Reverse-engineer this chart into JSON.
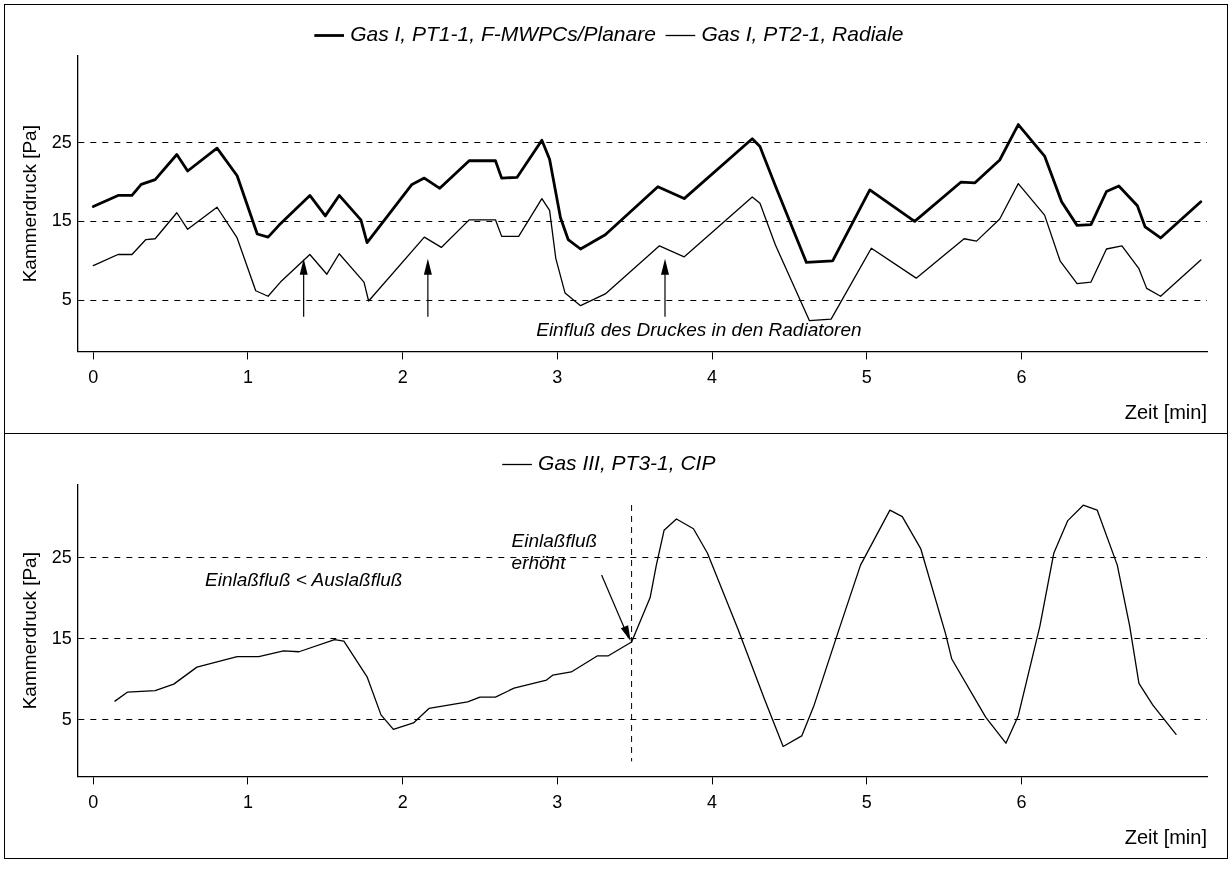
{
  "chart_data": [
    {
      "type": "line",
      "xlabel": "Zeit [min]",
      "ylabel": "Kammerdruck [Pa]",
      "xlim": [
        -0.1,
        7.2
      ],
      "ylim": [
        -1.5,
        36
      ],
      "xticks": [
        0,
        1,
        2,
        3,
        4,
        5,
        6
      ],
      "yticks": [
        5,
        15,
        25
      ],
      "grid": "y",
      "legend": "top",
      "annotations": [
        "Einfluß des Druckes in den Radiatoren"
      ],
      "series": [
        {
          "name": "Gas I, PT1-1, F-MWPCs/Planare",
          "color": "#000000",
          "x": [
            0,
            0.16,
            0.25,
            0.31,
            0.4,
            0.54,
            0.61,
            0.8,
            0.93,
            1.06,
            1.13,
            1.2,
            1.4,
            1.5,
            1.59,
            1.73,
            1.77,
            2.06,
            2.14,
            2.24,
            2.43,
            2.6,
            2.64,
            2.74,
            2.9,
            2.95,
            3.02,
            3.07,
            3.15,
            3.31,
            3.65,
            3.82,
            4.26,
            4.31,
            4.41,
            4.61,
            4.78,
            5.02,
            5.31,
            5.61,
            5.7,
            5.86,
            5.98,
            6.15,
            6.26,
            6.36,
            6.45,
            6.55,
            6.63,
            6.75,
            6.8,
            6.9,
            7.16
          ],
          "values": [
            16.9,
            18.3,
            18.3,
            19.7,
            20.3,
            23.5,
            21.4,
            24.3,
            20.8,
            13.4,
            13,
            14.5,
            18.3,
            15.7,
            18.3,
            15.2,
            12.3,
            19.7,
            20.5,
            19.2,
            22.7,
            22.7,
            20.5,
            20.6,
            25.3,
            22.9,
            15.5,
            12.7,
            11.5,
            13.3,
            19.4,
            17.9,
            25.5,
            24.5,
            19.5,
            9.8,
            10,
            19,
            15,
            20,
            19.9,
            22.8,
            27.3,
            23.3,
            17.5,
            14.5,
            14.6,
            18.8,
            19.5,
            17,
            14.3,
            12.9,
            17.5
          ]
        },
        {
          "name": "Gas I, PT2-1, Radiale",
          "color": "#000000",
          "x": [
            0,
            0.16,
            0.25,
            0.34,
            0.4,
            0.54,
            0.61,
            0.8,
            0.93,
            1.05,
            1.13,
            1.21,
            1.4,
            1.51,
            1.59,
            1.75,
            1.78,
            2.14,
            2.25,
            2.43,
            2.6,
            2.64,
            2.75,
            2.9,
            2.95,
            2.99,
            3.05,
            3.15,
            3.31,
            3.66,
            3.82,
            4.26,
            4.31,
            4.41,
            4.63,
            4.77,
            5.03,
            5.32,
            5.63,
            5.71,
            5.86,
            5.98,
            6.15,
            6.25,
            6.36,
            6.45,
            6.55,
            6.65,
            6.76,
            6.81,
            6.9,
            7.16
          ],
          "values": [
            9.4,
            10.8,
            10.8,
            12.7,
            12.8,
            16.1,
            14,
            16.8,
            12.9,
            6.2,
            5.5,
            7.3,
            10.8,
            8.3,
            10.9,
            7.3,
            4.9,
            13,
            11.7,
            15.2,
            15.2,
            13.1,
            13.1,
            17.9,
            16.4,
            10.3,
            5.9,
            4.3,
            5.8,
            11.9,
            10.5,
            18.1,
            17.3,
            12,
            2.4,
            2.6,
            11.6,
            7.8,
            12.8,
            12.5,
            15.3,
            19.8,
            15.8,
            10,
            7.1,
            7.3,
            11.5,
            11.9,
            9,
            6.5,
            5.5,
            10.1
          ]
        }
      ]
    },
    {
      "type": "line",
      "xlabel": "Zeit [min]",
      "ylabel": "Kammerdruck [Pa]",
      "xlim": [
        -0.1,
        7.2
      ],
      "ylim": [
        -2,
        34
      ],
      "xticks": [
        0,
        1,
        2,
        3,
        4,
        5,
        6
      ],
      "yticks": [
        5,
        15,
        25
      ],
      "grid": "y",
      "legend": "top",
      "annotations": [
        "Einlaßfluß < Auslaßfluß",
        {
          "text": "Einlaßfluß erhöht",
          "x": 3.48,
          "y": 14.6
        }
      ],
      "ref_lines": [
        {
          "axis": "x",
          "value": 3.48,
          "color": "#000000",
          "line_style": "dashed"
        }
      ],
      "series": [
        {
          "name": "Gas III, PT3-1, CIP",
          "color": "#000000",
          "x": [
            0.14,
            0.22,
            0.4,
            0.52,
            0.67,
            0.93,
            1.07,
            1.23,
            1.33,
            1.56,
            1.62,
            1.77,
            1.86,
            1.94,
            2.07,
            2.17,
            2.42,
            2.5,
            2.6,
            2.72,
            2.93,
            2.97,
            3.09,
            3.26,
            3.33,
            3.48,
            3.6,
            3.64,
            3.69,
            3.77,
            3.88,
            3.97,
            4.17,
            4.34,
            4.46,
            4.58,
            4.66,
            4.82,
            4.96,
            5.15,
            5.23,
            5.35,
            5.51,
            5.55,
            5.77,
            5.9,
            5.98,
            6.12,
            6.21,
            6.3,
            6.4,
            6.49,
            6.62,
            6.7,
            6.76,
            6.85,
            7
          ],
          "values": [
            7.3,
            8.4,
            8.6,
            9.4,
            11.5,
            12.8,
            12.8,
            13.5,
            13.4,
            14.9,
            14.7,
            10.3,
            5.6,
            3.8,
            4.6,
            6.4,
            7.2,
            7.8,
            7.8,
            8.9,
            9.9,
            10.5,
            10.9,
            12.9,
            12.9,
            14.6,
            20.1,
            24.1,
            28.4,
            29.8,
            28.6,
            25.6,
            16.1,
            7.5,
            1.7,
            3,
            6.8,
            16.1,
            24.1,
            30.9,
            30.1,
            26.1,
            15.6,
            12.5,
            5.3,
            2.1,
            5.5,
            16.6,
            25.6,
            29.6,
            31.5,
            30.9,
            24.1,
            16.6,
            9.5,
            6.8,
            3.2
          ]
        }
      ]
    }
  ]
}
